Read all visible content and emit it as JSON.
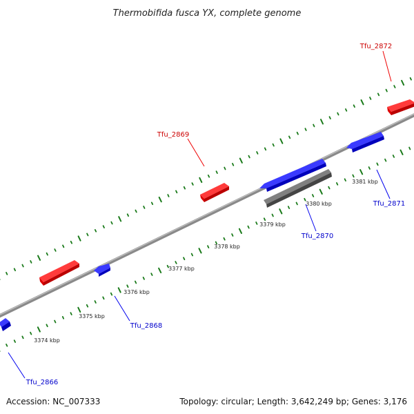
{
  "title": "Thermobifida fusca YX, complete genome",
  "footer": {
    "accession": "Accession: NC_007333",
    "summary": "Topology: circular; Length: 3,642,249 bp; Genes: 3,176"
  },
  "colors": {
    "forward_gene": "#ee0000",
    "reverse_gene": "#0000ee",
    "pseudo_gene": "#555555",
    "tick": "#1a7a1a",
    "backbone": "#888888",
    "forward_label": "#cc0000",
    "reverse_label": "#0000cc"
  },
  "scale_labels": [
    "3374 kbp",
    "3375 kbp",
    "3376 kbp",
    "3377 kbp",
    "3378 kbp",
    "3379 kbp",
    "3380 kbp",
    "3381 kbp"
  ],
  "gene_labels": {
    "tfu_2866": "Tfu_2866",
    "tfu_2868": "Tfu_2868",
    "tfu_2869": "Tfu_2869",
    "tfu_2870": "Tfu_2870",
    "tfu_2871": "Tfu_2871",
    "tfu_2872": "Tfu_2872"
  }
}
